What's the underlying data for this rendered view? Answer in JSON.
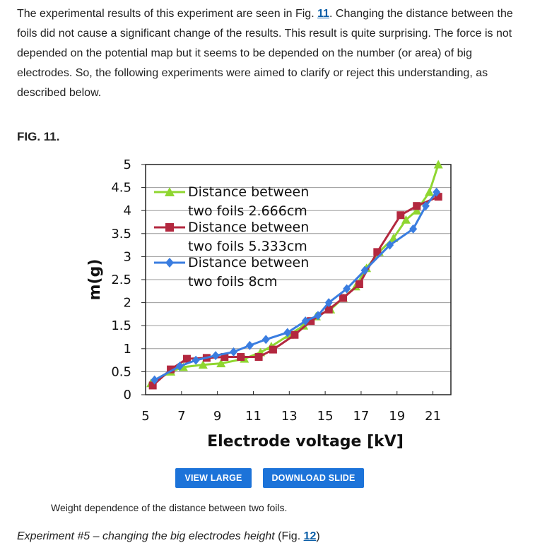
{
  "intro": {
    "text1": "The experimental results of this experiment are seen in Fig. ",
    "fig_ref": "11",
    "text2": ". Changing the distance between the foils did not cause a significant change of the results. This result is quite surprising. The force is not depended on the potential map but it seems to be depended on the number (or area) of big electrodes. So, the following experiments were aimed to clarify or reject this understanding, as described below."
  },
  "figure": {
    "label": "FIG. 11.",
    "caption": "Weight dependence of the distance between two foils.",
    "view_large_label": "VIEW LARGE",
    "download_slide_label": "DOWNLOAD SLIDE"
  },
  "experiment": {
    "italic_text": "Experiment #5 – changing the big electrodes height",
    "paren_open": " (Fig. ",
    "fig_ref": "12",
    "paren_close": ")"
  },
  "chart_data": {
    "type": "line",
    "title": "",
    "xlabel": "Electrode voltage [kV]",
    "ylabel": "m(g)",
    "xlim": [
      5,
      22
    ],
    "ylim": [
      0,
      5
    ],
    "x_ticks": [
      "5",
      "7",
      "9",
      "11",
      "13",
      "15",
      "17",
      "19",
      "21"
    ],
    "y_ticks": [
      "0",
      "0.5",
      "1",
      "1.5",
      "2",
      "2.5",
      "3",
      "3.5",
      "4",
      "4.5",
      "5"
    ],
    "grid": "horizontal",
    "legend_position": "top-left",
    "series": [
      {
        "name": "Distance between two foils 2.666cm",
        "legend_lines": [
          "Distance between",
          "two foils 2.666cm"
        ],
        "color": "#8fd630",
        "marker": "triangle",
        "points": [
          [
            5.3,
            0.25
          ],
          [
            6.4,
            0.5
          ],
          [
            7.1,
            0.6
          ],
          [
            8.2,
            0.65
          ],
          [
            9.2,
            0.68
          ],
          [
            10.5,
            0.78
          ],
          [
            11.4,
            0.92
          ],
          [
            12.0,
            1.05
          ],
          [
            13.0,
            1.3
          ],
          [
            13.8,
            1.5
          ],
          [
            14.5,
            1.7
          ],
          [
            15.3,
            1.85
          ],
          [
            16.0,
            2.1
          ],
          [
            16.7,
            2.35
          ],
          [
            17.3,
            2.75
          ],
          [
            18.0,
            3.1
          ],
          [
            18.8,
            3.4
          ],
          [
            19.5,
            3.8
          ],
          [
            20.1,
            4.0
          ],
          [
            20.8,
            4.4
          ],
          [
            21.3,
            5.0
          ]
        ]
      },
      {
        "name": "Distance between two foils 5.333cm",
        "legend_lines": [
          "Distance between",
          "two foils 5.333cm"
        ],
        "color": "#b3283f",
        "marker": "square",
        "points": [
          [
            5.4,
            0.2
          ],
          [
            6.4,
            0.55
          ],
          [
            7.3,
            0.78
          ],
          [
            8.4,
            0.8
          ],
          [
            9.4,
            0.82
          ],
          [
            10.3,
            0.82
          ],
          [
            11.3,
            0.82
          ],
          [
            12.1,
            0.98
          ],
          [
            13.3,
            1.3
          ],
          [
            14.2,
            1.6
          ],
          [
            15.2,
            1.85
          ],
          [
            16.0,
            2.1
          ],
          [
            16.9,
            2.4
          ],
          [
            17.9,
            3.1
          ],
          [
            19.2,
            3.9
          ],
          [
            20.1,
            4.1
          ],
          [
            21.3,
            4.3
          ]
        ]
      },
      {
        "name": "Distance between two foils 8cm",
        "legend_lines": [
          "Distance between",
          "two foils 8cm"
        ],
        "color": "#3a7de0",
        "marker": "diamond",
        "points": [
          [
            5.5,
            0.32
          ],
          [
            6.9,
            0.62
          ],
          [
            7.8,
            0.75
          ],
          [
            8.9,
            0.85
          ],
          [
            9.9,
            0.93
          ],
          [
            10.8,
            1.07
          ],
          [
            11.7,
            1.2
          ],
          [
            12.9,
            1.35
          ],
          [
            13.9,
            1.6
          ],
          [
            14.6,
            1.72
          ],
          [
            15.2,
            2.0
          ],
          [
            16.2,
            2.3
          ],
          [
            17.2,
            2.7
          ],
          [
            18.6,
            3.25
          ],
          [
            19.9,
            3.6
          ],
          [
            20.6,
            4.1
          ],
          [
            21.2,
            4.4
          ]
        ]
      }
    ]
  }
}
